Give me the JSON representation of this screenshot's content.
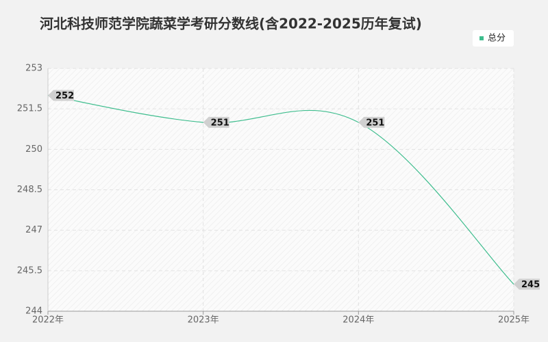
{
  "chart_data": {
    "type": "line",
    "title": "河北科技师范学院蔬菜学考研分数线(含2022-2025历年复试)",
    "categories": [
      "2022年",
      "2023年",
      "2024年",
      "2025年"
    ],
    "series": [
      {
        "name": "总分",
        "color": "#3dbd8d",
        "values": [
          252,
          251,
          251,
          245
        ]
      }
    ],
    "ylim": [
      244,
      253
    ],
    "yticks": [
      244,
      245.5,
      247,
      248.5,
      250,
      251.5,
      253
    ],
    "grid": true,
    "legend": "top-right"
  }
}
